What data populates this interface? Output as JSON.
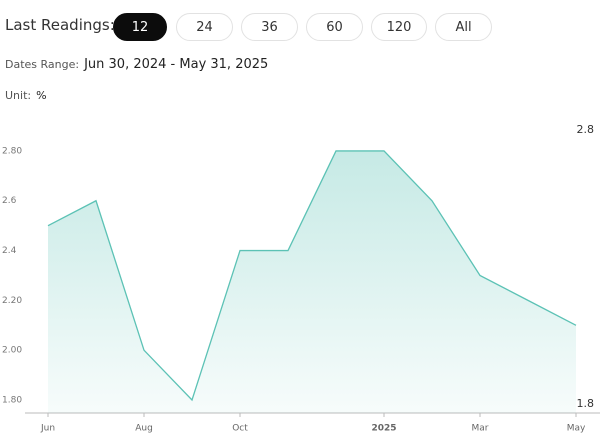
{
  "controls": {
    "label": "Last Readings:",
    "buttons": [
      "12",
      "24",
      "36",
      "60",
      "120",
      "All"
    ],
    "active": 0
  },
  "dates_range": {
    "label": "Dates Range:",
    "value": "Jun 30, 2024 - May 31, 2025"
  },
  "unit": {
    "label": "Unit:",
    "value": "%"
  },
  "chart_data": {
    "type": "area",
    "categories": [
      "Jun",
      null,
      "Aug",
      null,
      "Oct",
      null,
      null,
      "2025",
      null,
      "Mar",
      null,
      "May"
    ],
    "values": [
      2.5,
      2.6,
      2.0,
      1.8,
      2.4,
      2.4,
      2.8,
      2.8,
      2.6,
      2.3,
      2.2,
      2.1
    ],
    "color": "#5cc2b5",
    "ylim": [
      1.75,
      2.88
    ],
    "yticks": [
      {
        "value": 2.8,
        "label": "2.80"
      },
      2.6,
      2.4,
      {
        "value": 2.2,
        "label": "2.20"
      },
      {
        "value": 2.0,
        "label": "2.00"
      },
      {
        "value": 1.8,
        "label": "1.80"
      }
    ],
    "annotations": [
      "2.8",
      "1.8"
    ]
  }
}
